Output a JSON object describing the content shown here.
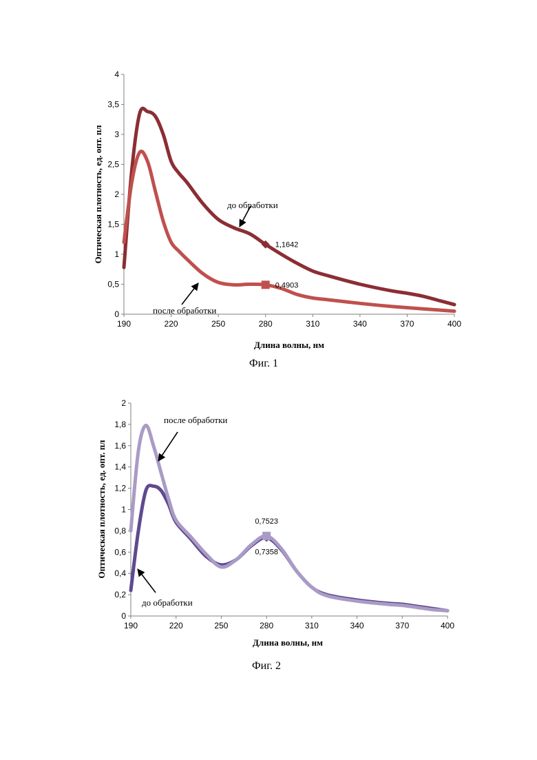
{
  "chart_data": [
    {
      "type": "line",
      "caption": "Фиг. 1",
      "xlabel": "Длина волны, нм",
      "ylabel": "Оптическая плотность, ед. опт. пл",
      "xlim": [
        190,
        400
      ],
      "ylim": [
        0,
        4
      ],
      "x_ticks": [
        "190",
        "220",
        "250",
        "280",
        "310",
        "340",
        "370",
        "400"
      ],
      "y_ticks": [
        "0",
        "0,5",
        "1",
        "1,5",
        "2",
        "2,5",
        "3",
        "3,5",
        "4"
      ],
      "grid": false,
      "series": [
        {
          "color": "#8B2E34",
          "x": [
            190,
            195,
            200,
            205,
            210,
            215,
            220,
            225,
            230,
            240,
            250,
            260,
            270,
            280,
            290,
            300,
            310,
            320,
            340,
            360,
            370,
            380,
            390,
            400
          ],
          "y": [
            0.78,
            2.4,
            3.35,
            3.38,
            3.3,
            3.0,
            2.55,
            2.35,
            2.2,
            1.85,
            1.58,
            1.44,
            1.34,
            1.1642,
            1.0,
            0.85,
            0.72,
            0.64,
            0.5,
            0.39,
            0.35,
            0.3,
            0.23,
            0.16
          ],
          "marker": {
            "x": 280,
            "y": 1.1642,
            "shape": "diamond",
            "label": "1,1642"
          }
        },
        {
          "color": "#C0504D",
          "x": [
            190,
            195,
            200,
            205,
            210,
            215,
            220,
            225,
            230,
            240,
            250,
            260,
            270,
            280,
            290,
            300,
            310,
            320,
            340,
            360,
            380,
            400
          ],
          "y": [
            1.2,
            2.2,
            2.7,
            2.55,
            2.05,
            1.55,
            1.2,
            1.05,
            0.92,
            0.68,
            0.53,
            0.49,
            0.5,
            0.4903,
            0.43,
            0.33,
            0.27,
            0.24,
            0.18,
            0.13,
            0.09,
            0.05
          ],
          "marker": {
            "x": 280,
            "y": 0.4903,
            "shape": "square",
            "label": "0,4903"
          }
        }
      ],
      "annotations": [
        {
          "text": "до обработки"
        },
        {
          "text": "после обработки"
        }
      ]
    },
    {
      "type": "line",
      "caption": "Фиг. 2",
      "xlabel": "Длина волны, нм",
      "ylabel": "Оптическая плотность, ед. опт. пл",
      "xlim": [
        190,
        400
      ],
      "ylim": [
        0,
        2
      ],
      "x_ticks": [
        "190",
        "220",
        "250",
        "280",
        "310",
        "340",
        "370",
        "400"
      ],
      "y_ticks": [
        "0",
        "0,2",
        "0,4",
        "0,6",
        "0,8",
        "1",
        "1,2",
        "1,4",
        "1,6",
        "1,8",
        "2"
      ],
      "grid": false,
      "series": [
        {
          "color": "#5E4A8E",
          "x": [
            190,
            195,
            200,
            205,
            210,
            215,
            220,
            230,
            240,
            250,
            260,
            270,
            280,
            290,
            300,
            310,
            320,
            340,
            360,
            370,
            380,
            390,
            400
          ],
          "y": [
            0.24,
            0.8,
            1.18,
            1.22,
            1.18,
            1.05,
            0.88,
            0.72,
            0.56,
            0.48,
            0.53,
            0.66,
            0.7358,
            0.62,
            0.42,
            0.27,
            0.2,
            0.15,
            0.12,
            0.11,
            0.09,
            0.07,
            0.05
          ],
          "marker": {
            "x": 280,
            "y": 0.7358,
            "shape": "diamond",
            "label": "0,7358"
          }
        },
        {
          "color": "#A99BC6",
          "x": [
            190,
            195,
            200,
            205,
            210,
            215,
            220,
            230,
            240,
            250,
            260,
            270,
            280,
            290,
            300,
            310,
            320,
            340,
            360,
            370,
            380,
            390,
            400
          ],
          "y": [
            0.8,
            1.55,
            1.79,
            1.6,
            1.35,
            1.1,
            0.9,
            0.74,
            0.58,
            0.46,
            0.53,
            0.67,
            0.7523,
            0.63,
            0.42,
            0.27,
            0.19,
            0.14,
            0.11,
            0.1,
            0.08,
            0.06,
            0.05
          ],
          "marker": {
            "x": 280,
            "y": 0.7523,
            "shape": "square",
            "label": "0,7523"
          }
        }
      ],
      "annotations": [
        {
          "text": "после обработки"
        },
        {
          "text": "до обработки"
        }
      ]
    }
  ]
}
